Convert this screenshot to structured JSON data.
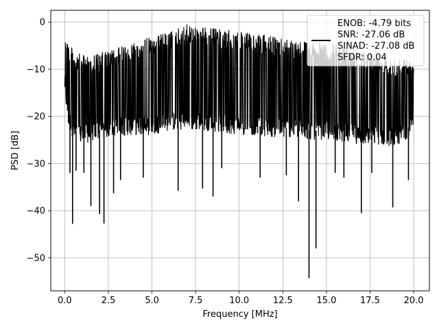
{
  "chart_data": {
    "type": "line",
    "xlabel": "Frequency [MHz]",
    "ylabel": "PSD [dB]",
    "xlim": [
      -0.8,
      20.9
    ],
    "ylim": [
      -57,
      2.5
    ],
    "x_ticks": [
      0.0,
      2.5,
      5.0,
      7.5,
      10.0,
      12.5,
      15.0,
      17.5,
      20.0
    ],
    "x_tick_labels": [
      "0.0",
      "2.5",
      "5.0",
      "7.5",
      "10.0",
      "12.5",
      "15.0",
      "17.5",
      "20.0"
    ],
    "y_ticks": [
      0,
      -10,
      -20,
      -30,
      -40,
      -50
    ],
    "y_tick_labels": [
      "0",
      "−10",
      "−20",
      "−30",
      "−40",
      "−50"
    ],
    "grid": true,
    "legend_position": "top-right",
    "line_color": "#000000",
    "series": [
      {
        "name": "",
        "noise_envelope_upper": [
          [
            0.0,
            0.0
          ],
          [
            0.2,
            -4.0
          ],
          [
            0.5,
            -6.0
          ],
          [
            1.0,
            -7.0
          ],
          [
            2.0,
            -6.5
          ],
          [
            3.0,
            -5.5
          ],
          [
            4.0,
            -4.0
          ],
          [
            5.0,
            -3.0
          ],
          [
            6.0,
            -2.0
          ],
          [
            7.0,
            -0.5
          ],
          [
            8.0,
            -1.0
          ],
          [
            9.0,
            -1.5
          ],
          [
            10.0,
            -2.0
          ],
          [
            11.0,
            -2.5
          ],
          [
            12.0,
            -3.0
          ],
          [
            13.0,
            -3.5
          ],
          [
            14.0,
            -4.0
          ],
          [
            15.0,
            -4.5
          ],
          [
            16.0,
            -5.0
          ],
          [
            17.0,
            -6.0
          ],
          [
            18.0,
            -6.5
          ],
          [
            19.0,
            -7.5
          ],
          [
            20.0,
            -8.0
          ]
        ],
        "noise_envelope_lower": [
          [
            0.0,
            -15.0
          ],
          [
            0.2,
            -22.0
          ],
          [
            0.5,
            -25.0
          ],
          [
            1.0,
            -26.0
          ],
          [
            2.0,
            -25.0
          ],
          [
            3.0,
            -24.0
          ],
          [
            4.0,
            -24.0
          ],
          [
            5.0,
            -24.0
          ],
          [
            6.0,
            -23.0
          ],
          [
            7.0,
            -23.0
          ],
          [
            8.0,
            -23.0
          ],
          [
            9.0,
            -23.5
          ],
          [
            10.0,
            -24.0
          ],
          [
            11.0,
            -24.0
          ],
          [
            12.0,
            -24.5
          ],
          [
            13.0,
            -24.5
          ],
          [
            14.0,
            -25.0
          ],
          [
            15.0,
            -25.0
          ],
          [
            16.0,
            -25.5
          ],
          [
            17.0,
            -26.0
          ],
          [
            18.0,
            -26.0
          ],
          [
            19.0,
            -26.5
          ],
          [
            20.0,
            -23.5
          ]
        ],
        "dips": [
          [
            0.3,
            -32.0
          ],
          [
            0.45,
            -42.8
          ],
          [
            0.65,
            -31.5
          ],
          [
            1.1,
            -32.0
          ],
          [
            1.5,
            -39.0
          ],
          [
            2.0,
            -40.7
          ],
          [
            2.25,
            -42.7
          ],
          [
            2.8,
            -36.3
          ],
          [
            3.2,
            -33.5
          ],
          [
            4.5,
            -33.0
          ],
          [
            6.5,
            -35.8
          ],
          [
            7.9,
            -35.3
          ],
          [
            8.5,
            -37.0
          ],
          [
            9.0,
            -31.0
          ],
          [
            11.2,
            -33.0
          ],
          [
            12.7,
            -32.5
          ],
          [
            13.4,
            -38.0
          ],
          [
            14.0,
            -54.3
          ],
          [
            14.4,
            -48.0
          ],
          [
            15.5,
            -32.0
          ],
          [
            16.0,
            -33.0
          ],
          [
            17.0,
            -40.5
          ],
          [
            17.6,
            -32.0
          ],
          [
            18.8,
            -39.3
          ],
          [
            19.7,
            -33.5
          ]
        ]
      }
    ],
    "legend_lines": [
      "ENOB: -4.79 bits",
      "SNR: -27.06 dB",
      "SINAD: -27.08 dB",
      "SFDR: 0.04"
    ]
  }
}
